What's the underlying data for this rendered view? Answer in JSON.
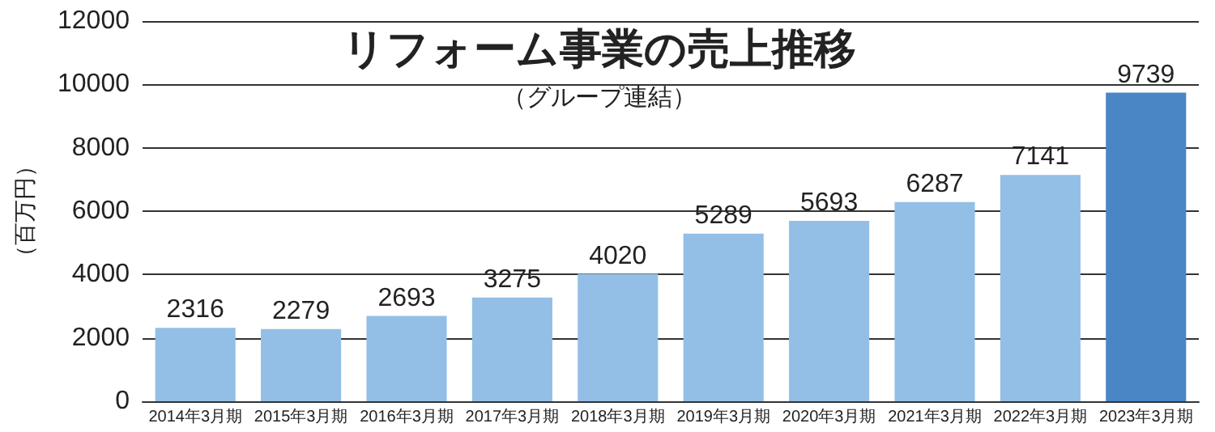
{
  "chart_data": {
    "type": "bar",
    "title": "リフォーム事業の売上推移",
    "subtitle": "（グループ連結）",
    "ylabel": "（百万円）",
    "categories": [
      "2014年3月期",
      "2015年3月期",
      "2016年3月期",
      "2017年3月期",
      "2018年3月期",
      "2019年3月期",
      "2020年3月期",
      "2021年3月期",
      "2022年3月期",
      "2023年3月期"
    ],
    "values": [
      2316,
      2279,
      2693,
      3275,
      4020,
      5289,
      5693,
      6287,
      7141,
      9739
    ],
    "colors": [
      "#93bfe6",
      "#93bfe6",
      "#93bfe6",
      "#93bfe6",
      "#93bfe6",
      "#93bfe6",
      "#93bfe6",
      "#93bfe6",
      "#93bfe6",
      "#4a86c5"
    ],
    "ylim": [
      0,
      12000
    ],
    "yticks": [
      0,
      2000,
      4000,
      6000,
      8000,
      10000,
      12000
    ],
    "grid": "y",
    "data_labels": true
  }
}
